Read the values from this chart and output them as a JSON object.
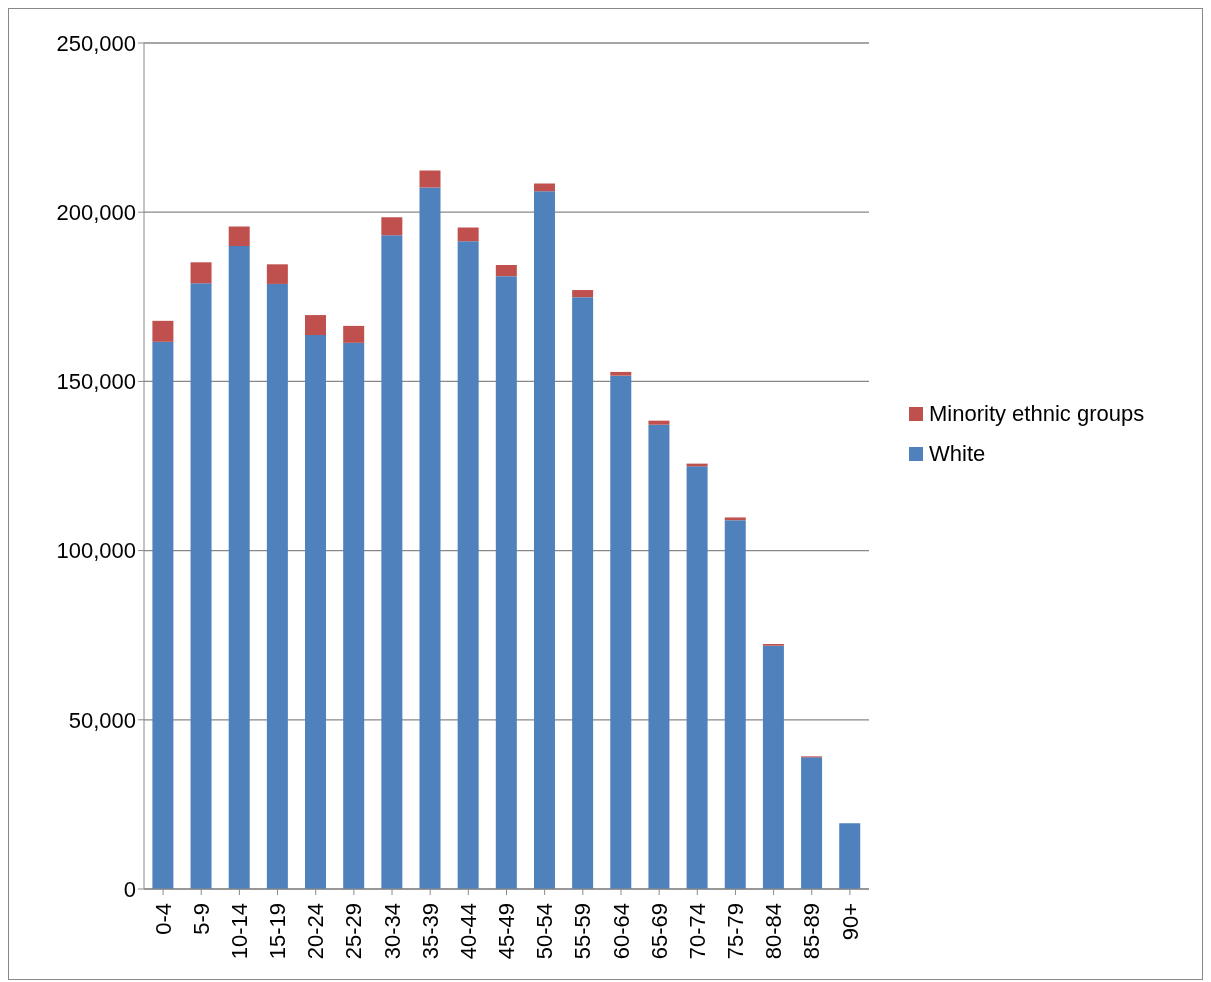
{
  "chart_data": {
    "type": "bar",
    "stacked": true,
    "categories": [
      "0-4",
      "5-9",
      "10-14",
      "15-19",
      "20-24",
      "25-29",
      "30-34",
      "35-39",
      "40-44",
      "45-49",
      "50-54",
      "55-59",
      "60-64",
      "65-69",
      "70-74",
      "75-79",
      "80-84",
      "85-89",
      "90+"
    ],
    "series": [
      {
        "name": "White",
        "color": "#4f81bd",
        "values": [
          161700,
          179000,
          190000,
          178800,
          163700,
          161400,
          193200,
          207300,
          191400,
          181100,
          206200,
          174900,
          151700,
          137200,
          124900,
          109000,
          71900,
          38900,
          19400
        ]
      },
      {
        "name": "Minority ethnic groups",
        "color": "#c0504d",
        "values": [
          6200,
          6200,
          5800,
          5800,
          5900,
          5000,
          5300,
          5000,
          4100,
          3300,
          2300,
          2100,
          1100,
          1200,
          800,
          800,
          500,
          300,
          null
        ]
      }
    ],
    "ylim": [
      0,
      250000
    ],
    "yticks": [
      {
        "value": 0,
        "label": "0"
      },
      {
        "value": 50000,
        "label": "50,000"
      },
      {
        "value": 100000,
        "label": "100,000"
      },
      {
        "value": 150000,
        "label": "150,000"
      },
      {
        "value": 200000,
        "label": "200,000"
      },
      {
        "value": 250000,
        "label": "250,000"
      }
    ],
    "grid": "y",
    "legend": "right"
  }
}
